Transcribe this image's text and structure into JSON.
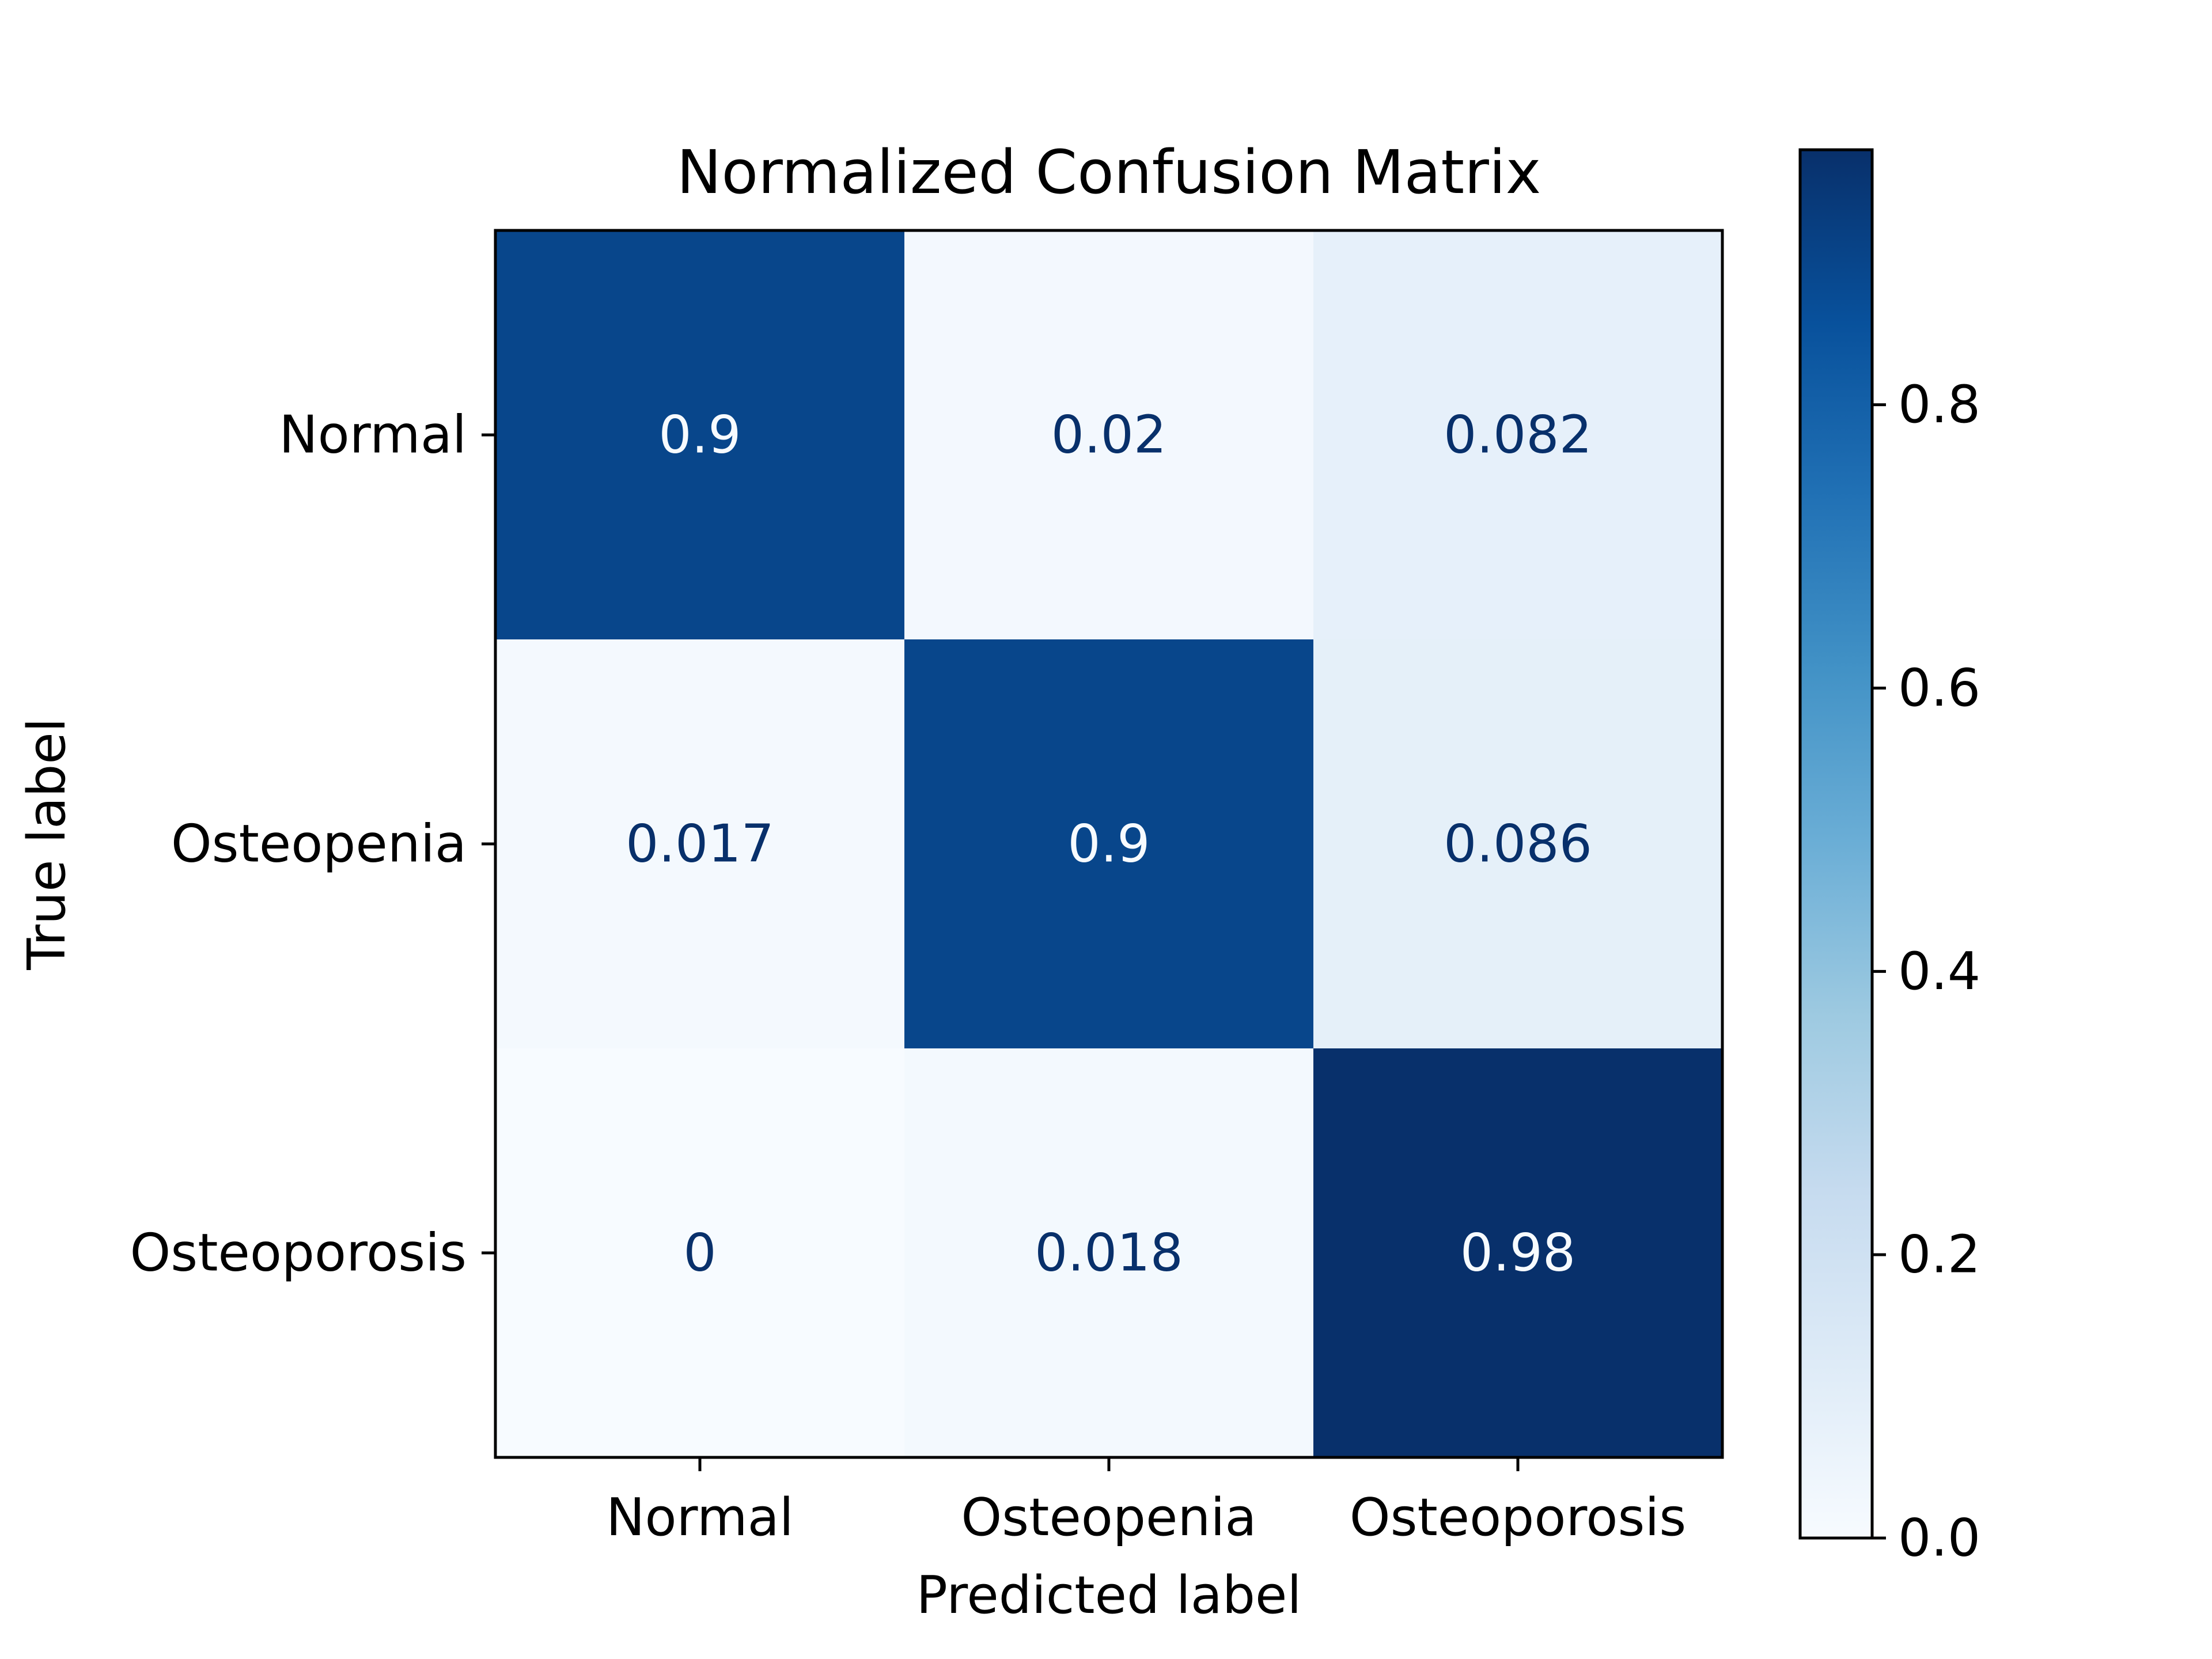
{
  "chart_data": {
    "type": "heatmap",
    "title": "Normalized Confusion Matrix",
    "xlabel": "Predicted label",
    "ylabel": "True label",
    "x_categories": [
      "Normal",
      "Osteopenia",
      "Osteoporosis"
    ],
    "y_categories": [
      "Normal",
      "Osteopenia",
      "Osteoporosis"
    ],
    "values": [
      [
        0.9,
        0.02,
        0.082
      ],
      [
        0.017,
        0.9,
        0.086
      ],
      [
        0,
        0.018,
        0.98
      ]
    ],
    "cell_labels": [
      [
        "0.9",
        "0.02",
        "0.082"
      ],
      [
        "0.017",
        "0.9",
        "0.086"
      ],
      [
        "0",
        "0.018",
        "0.98"
      ]
    ],
    "colormap": "Blues",
    "colorbar": {
      "min": 0.0,
      "max": 0.98,
      "ticks": [
        0.0,
        0.2,
        0.4,
        0.6,
        0.8
      ],
      "tick_labels": [
        "0.0",
        "0.2",
        "0.4",
        "0.6",
        "0.8"
      ]
    },
    "grid": false
  }
}
